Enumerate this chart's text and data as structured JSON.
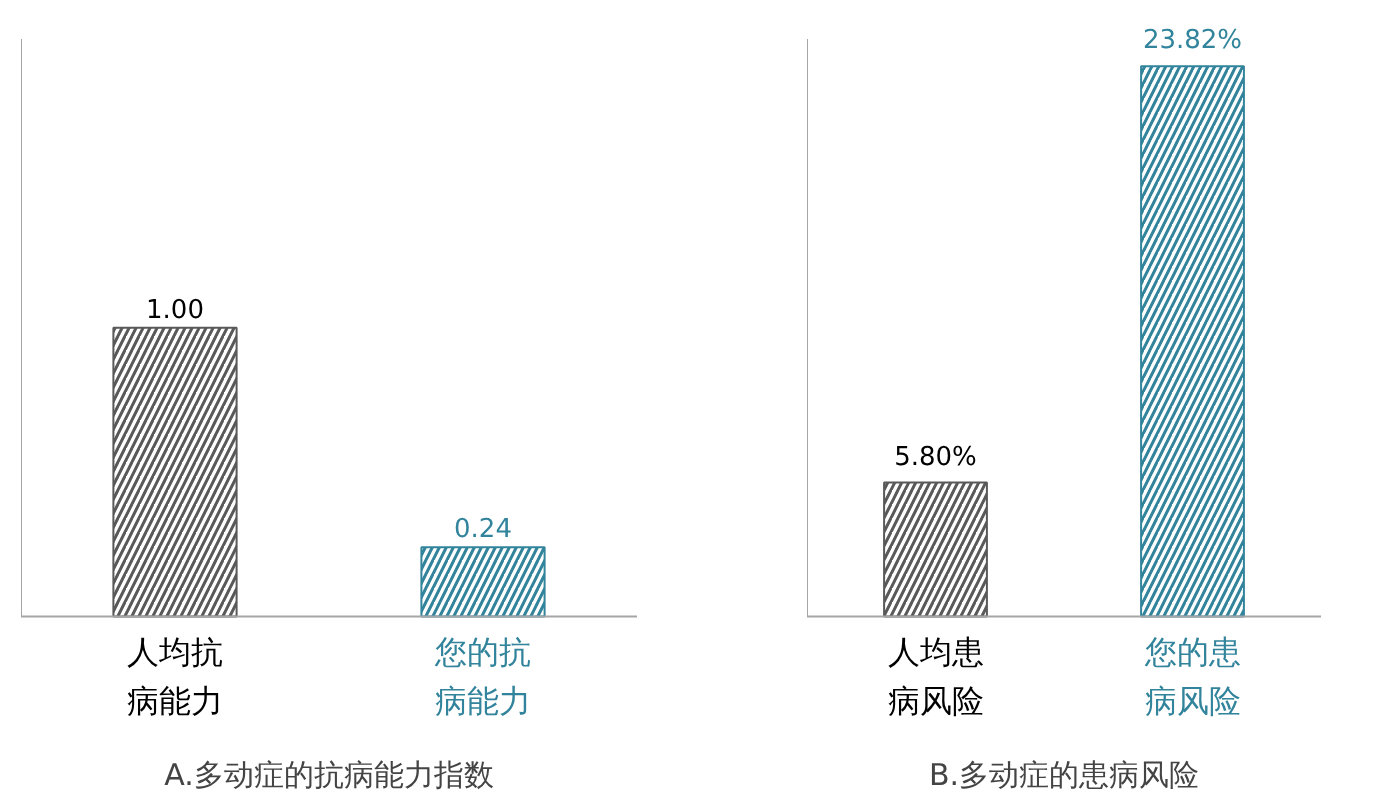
{
  "chart_data": [
    {
      "type": "bar",
      "title": "A.多动症的抗病能力指数",
      "categories": [
        "人均抗病能力",
        "您的抗病能力"
      ],
      "values": [
        1.0,
        0.24
      ],
      "colors": [
        "#595959",
        "#31849b"
      ],
      "value_labels": [
        "1.00",
        "0.24"
      ],
      "ylim": [
        0,
        2
      ]
    },
    {
      "type": "bar",
      "title": "B.多动症的患病风险",
      "categories": [
        "人均患病风险",
        "您的患病风险"
      ],
      "values": [
        5.8,
        23.82
      ],
      "colors": [
        "#595959",
        "#31849b"
      ],
      "value_labels": [
        "5.80%",
        "23.82%"
      ],
      "ylim": [
        0,
        25
      ]
    }
  ]
}
